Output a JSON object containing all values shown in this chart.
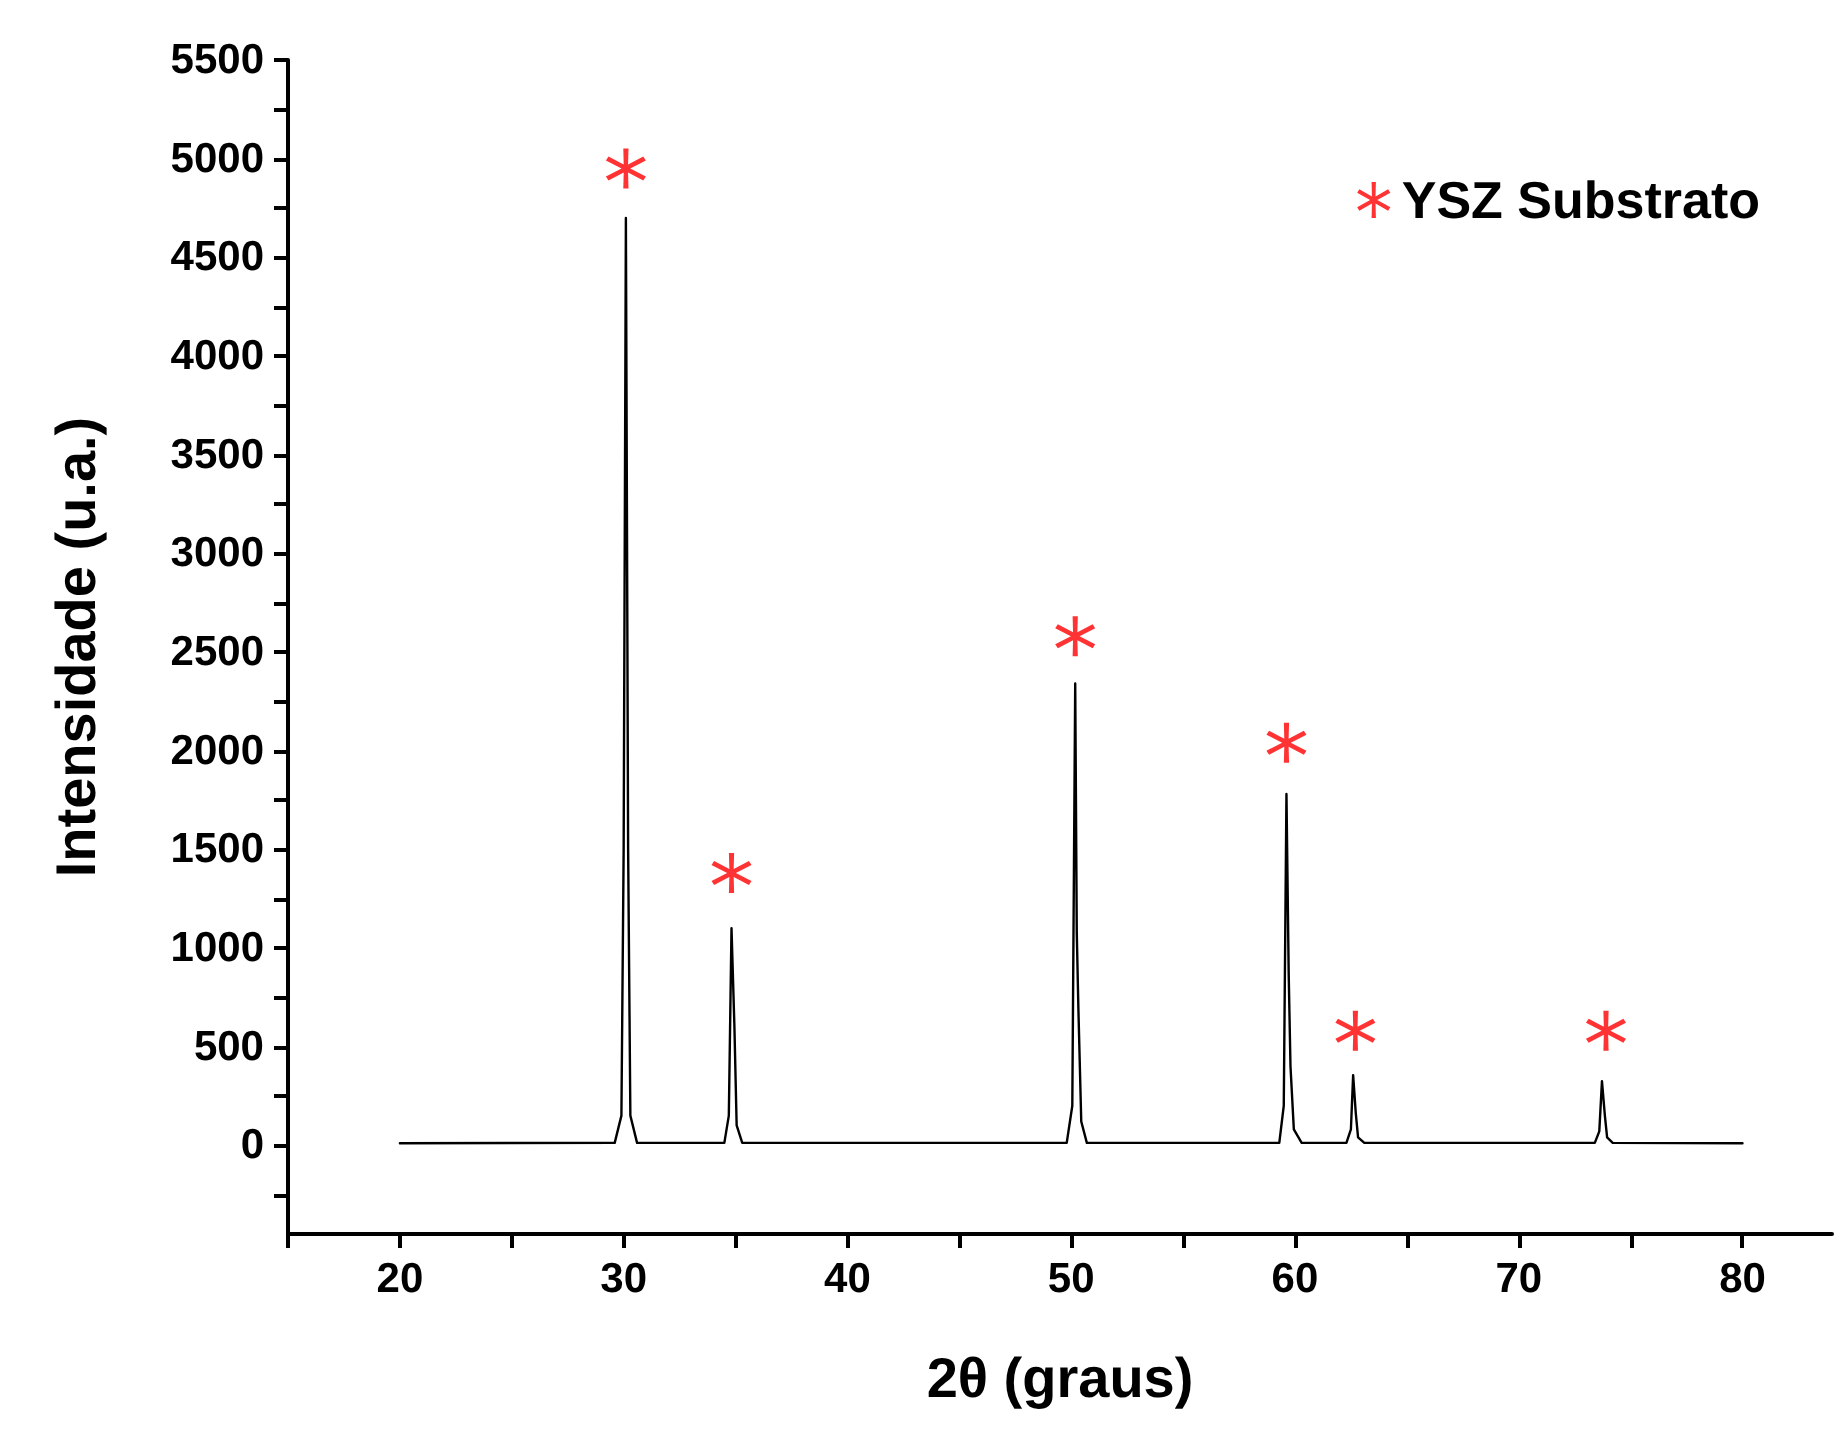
{
  "chart_data": {
    "type": "line",
    "xlabel": "2θ (graus)",
    "ylabel": "Intensidade (u.a.)",
    "xlim": [
      15,
      84
    ],
    "ylim": [
      -450,
      5500
    ],
    "xticks": [
      {
        "value": 15,
        "label": null
      },
      20,
      {
        "value": 25,
        "label": null
      },
      30,
      {
        "value": 35,
        "label": null
      },
      40,
      {
        "value": 45,
        "label": null
      },
      50,
      {
        "value": 55,
        "label": null
      },
      60,
      {
        "value": 65,
        "label": null
      },
      70,
      {
        "value": 75,
        "label": null
      },
      80
    ],
    "yticks": [
      {
        "value": -250,
        "label": null
      },
      0,
      {
        "value": 250,
        "label": null
      },
      500,
      {
        "value": 750,
        "label": null
      },
      1000,
      {
        "value": 1250,
        "label": null
      },
      1500,
      {
        "value": 1750,
        "label": null
      },
      2000,
      {
        "value": 2250,
        "label": null
      },
      2500,
      {
        "value": 2750,
        "label": null
      },
      3000,
      {
        "value": 3250,
        "label": null
      },
      3500,
      {
        "value": 3750,
        "label": null
      },
      4000,
      {
        "value": 4250,
        "label": null
      },
      4500,
      {
        "value": 4750,
        "label": null
      },
      5000,
      {
        "value": 5250,
        "label": null
      },
      5500
    ],
    "grid": false,
    "legend": "top right",
    "series": [
      {
        "color": "#000000",
        "marker": "none",
        "x": [
          20,
          29.6,
          29.9,
          30.0,
          30.1,
          30.2,
          30.3,
          30.6,
          34.5,
          34.7,
          34.82,
          34.95,
          35.05,
          35.3,
          49.8,
          50.05,
          50.18,
          50.25,
          50.32,
          50.45,
          50.7,
          59.3,
          59.5,
          59.62,
          59.72,
          59.8,
          59.95,
          60.3,
          62.3,
          62.5,
          62.6,
          62.72,
          62.82,
          63.1,
          73.4,
          73.6,
          73.72,
          73.85,
          73.95,
          74.2,
          80
        ],
        "values": [
          10,
          12,
          150,
          1500,
          4700,
          1500,
          150,
          12,
          12,
          150,
          1100,
          600,
          100,
          12,
          12,
          200,
          2340,
          1075,
          700,
          120,
          12,
          12,
          200,
          1780,
          870,
          400,
          80,
          12,
          12,
          80,
          355,
          160,
          40,
          12,
          12,
          70,
          325,
          150,
          40,
          12,
          10
        ]
      },
      {
        "type": "scatter",
        "name": "YSZ Substrato",
        "color": "#ff0000",
        "marker": "star",
        "x": [
          30.1,
          34.82,
          50.18,
          59.62,
          62.7,
          73.9
        ],
        "values": [
          4950,
          1380,
          2580,
          2040,
          580,
          580
        ]
      }
    ]
  }
}
